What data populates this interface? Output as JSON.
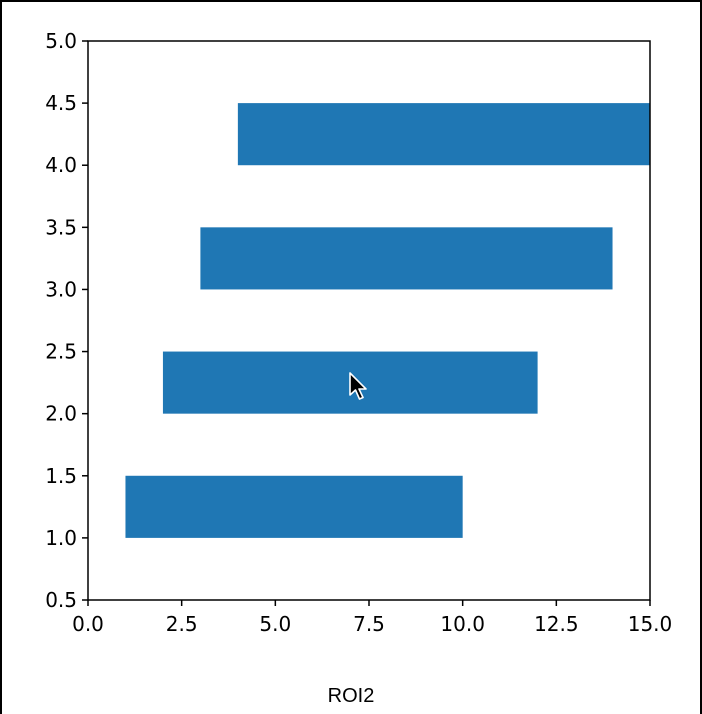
{
  "chart_data": {
    "type": "bar",
    "orientation": "horizontal",
    "bars": [
      {
        "y_start": 1.0,
        "y_end": 1.5,
        "x_start": 1.0,
        "x_end": 10.0
      },
      {
        "y_start": 2.0,
        "y_end": 2.5,
        "x_start": 2.0,
        "x_end": 12.0
      },
      {
        "y_start": 3.0,
        "y_end": 3.5,
        "x_start": 3.0,
        "x_end": 14.0
      },
      {
        "y_start": 4.0,
        "y_end": 4.5,
        "x_start": 4.0,
        "x_end": 15.0
      }
    ],
    "xlim": [
      0.0,
      15.0
    ],
    "ylim": [
      0.5,
      5.0
    ],
    "x_ticks": [
      "0.0",
      "2.5",
      "5.0",
      "7.5",
      "10.0",
      "12.5",
      "15.0"
    ],
    "y_ticks": [
      "0.5",
      "1.0",
      "1.5",
      "2.0",
      "2.5",
      "3.0",
      "3.5",
      "4.0",
      "4.5",
      "5.0"
    ],
    "grid": false,
    "bar_color": "#1f77b4"
  },
  "caption": "ROI2",
  "cursor_icon": "arrow-cursor-icon"
}
